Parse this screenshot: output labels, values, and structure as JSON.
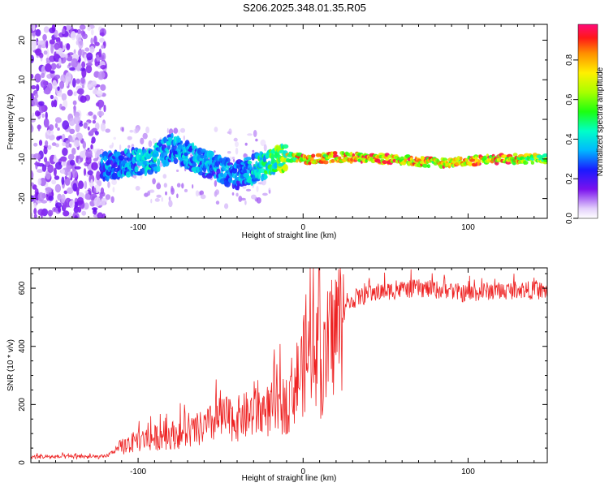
{
  "title": "S206.2025.348.01.35.R05",
  "chart_data": [
    {
      "type": "heatmap",
      "xlabel": "Height of straight line (km)",
      "ylabel": "Frequency (Hz)",
      "xlim": [
        -165,
        148
      ],
      "ylim": [
        -25,
        24
      ],
      "x_ticks": [
        -100,
        0,
        100
      ],
      "y_ticks": [
        20,
        10,
        0,
        -10,
        -20
      ],
      "colorbar": {
        "label": "Normalized spectral amplitude",
        "range": [
          0.0,
          0.98
        ],
        "ticks": [
          "0.0",
          "0.2",
          "0.4",
          "0.6",
          "0.8"
        ],
        "tick_values": [
          0.0,
          0.2,
          0.4,
          0.6,
          0.8
        ]
      },
      "description_points": [
        {
          "x": -165,
          "y": -12,
          "z": 0.15
        },
        {
          "x": -120,
          "y": -12,
          "z": 0.35
        },
        {
          "x": -90,
          "y": -10,
          "z": 0.45
        },
        {
          "x": -80,
          "y": -7,
          "z": 0.4
        },
        {
          "x": -60,
          "y": -11,
          "z": 0.4
        },
        {
          "x": -40,
          "y": -14,
          "z": 0.35
        },
        {
          "x": -20,
          "y": -11,
          "z": 0.55
        },
        {
          "x": -10,
          "y": -9.5,
          "z": 0.75
        },
        {
          "x": 0,
          "y": -10,
          "z": 0.9
        },
        {
          "x": 10,
          "y": -10,
          "z": 0.85
        },
        {
          "x": 20,
          "y": -9.5,
          "z": 0.95
        },
        {
          "x": 50,
          "y": -10,
          "z": 0.95
        },
        {
          "x": 85,
          "y": -11,
          "z": 0.9
        },
        {
          "x": 120,
          "y": -10,
          "z": 0.95
        },
        {
          "x": 148,
          "y": -10,
          "z": 0.7
        }
      ]
    },
    {
      "type": "line",
      "xlabel": "Height of straight line (km)",
      "ylabel": "SNR (10 * v/v)",
      "xlim": [
        -165,
        148
      ],
      "ylim": [
        0,
        670
      ],
      "x_ticks": [
        -100,
        0,
        100
      ],
      "y_ticks": [
        0,
        200,
        400,
        600
      ],
      "series": [
        {
          "name": "SNR",
          "color": "#ee2222",
          "x": [
            -165,
            -140,
            -120,
            -110,
            -100,
            -90,
            -80,
            -70,
            -60,
            -50,
            -40,
            -30,
            -20,
            -10,
            -5,
            0,
            5,
            8,
            10,
            12,
            15,
            20,
            25,
            30,
            40,
            50,
            60,
            70,
            80,
            90,
            100,
            110,
            120,
            130,
            148
          ],
          "y": [
            20,
            20,
            20,
            55,
            75,
            85,
            95,
            100,
            120,
            150,
            150,
            170,
            180,
            200,
            270,
            330,
            380,
            400,
            310,
            280,
            400,
            470,
            520,
            560,
            580,
            590,
            595,
            600,
            595,
            590,
            580,
            590,
            590,
            595,
            590
          ]
        }
      ]
    }
  ],
  "colors": {
    "line": "#ee2222",
    "frame": "#000000"
  }
}
